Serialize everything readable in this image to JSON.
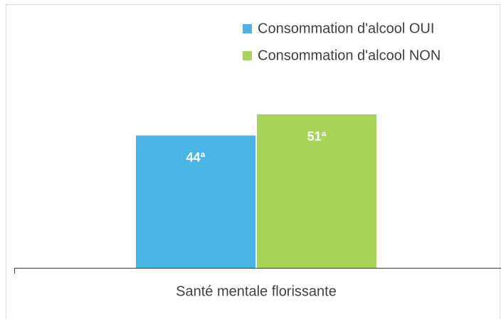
{
  "chart_data": {
    "type": "bar",
    "categories": [
      "Santé mentale florissante"
    ],
    "series": [
      {
        "name": "Consommation d'alcool OUI",
        "color": "#4ab5e4",
        "values": [
          44
        ],
        "value_labels": [
          "44ª"
        ]
      },
      {
        "name": "Consommation d'alcool NON",
        "color": "#a8d45a",
        "values": [
          51
        ],
        "value_labels": [
          "51ª"
        ]
      }
    ],
    "ylim": [
      0,
      85
    ],
    "legend": "top-right"
  }
}
